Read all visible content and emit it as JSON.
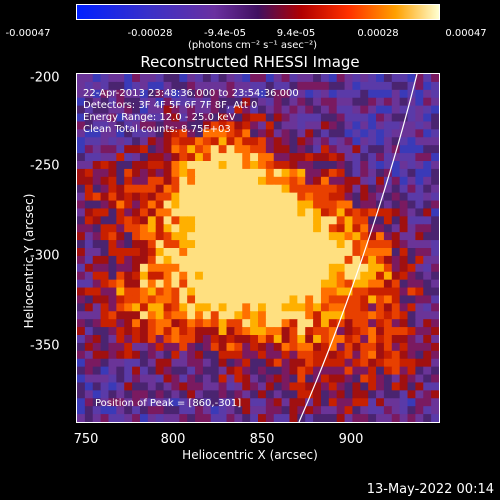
{
  "colorbar": {
    "ticks": [
      "-0.00047",
      "-0.00028",
      "-9.4e-05",
      "9.4e-05",
      "0.00028",
      "0.00047"
    ],
    "unit": "(photons cm⁻² s⁻¹ asec⁻²)"
  },
  "plot": {
    "title": "Reconstructed RHESSI Image",
    "info": [
      "22-Apr-2013 23:48:36.000 to 23:54:36.000",
      "Detectors: 3F 4F 5F 6F 7F 8F, Att 0",
      "Energy Range: 12.0 - 25.0 keV",
      "Clean     Total counts: 8.75E+03"
    ],
    "peak": "Position of Peak = [860,-301]",
    "xlabel": "Heliocentric X (arcsec)",
    "ylabel": "Heliocentric Y (arcsec)",
    "xticks": [
      "750",
      "800",
      "850",
      "900"
    ],
    "yticks": [
      "-200",
      "-250",
      "-300",
      "-350"
    ]
  },
  "footer": {
    "timestamp": "13-May-2022 00:14"
  }
}
